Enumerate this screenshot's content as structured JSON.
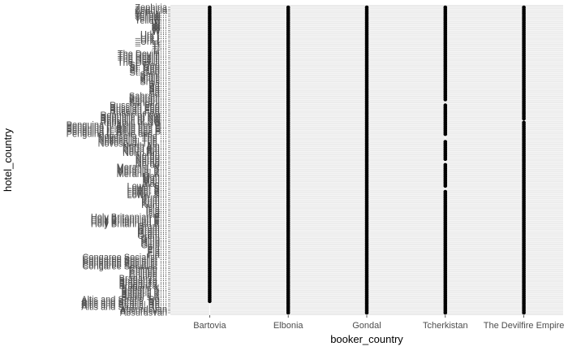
{
  "chart_data": {
    "type": "scatter",
    "title": "",
    "xlabel": "booker_country",
    "ylabel": "hotel_country",
    "grid": true,
    "x_categories": [
      "Bartovia",
      "Elbonia",
      "Gondal",
      "Tcherkistan",
      "The Devilfire Empire"
    ],
    "y_tick_labels_readable": [
      "Zephiria",
      "Yellow...",
      "W...",
      "_Urk (...",
      "Tr...",
      "The Devilfi...",
      "St. Geo...",
      "Shtis...",
      "Sa...",
      "Sahrani...",
      "Russian Fed...",
      "Republic of Nw...",
      "Penguina (L'Ã©le des P...",
      "Novosella, The ...",
      "North Am...",
      "Nerdo...",
      "Merania, K...",
      "Mari...",
      "Lower S...",
      "Kum...",
      "Isla...",
      "Holy Britannian E...",
      "Gram...",
      "Glub...",
      "Fla...",
      "Congaree Socialist ...",
      "Chinee ...",
      "Braganza ...",
      "Babar's K...",
      "Altis and Stratis, Re...",
      "Absurdsvan"
    ],
    "n_hotel_countries": 160,
    "series": [
      {
        "x": "Bartovia",
        "y_rows": [
          [
            0,
            153
          ]
        ]
      },
      {
        "x": "Elbonia",
        "y_rows": [
          [
            0,
            159
          ]
        ]
      },
      {
        "x": "Gondal",
        "y_rows": [
          [
            0,
            159
          ]
        ]
      },
      {
        "x": "Tcherkistan",
        "y_rows": [
          [
            0,
            48
          ],
          [
            51,
            66
          ],
          [
            70,
            79
          ],
          [
            82,
            93
          ],
          [
            96,
            159
          ]
        ]
      },
      {
        "x": "The Devilfire Empire",
        "y_rows": [
          [
            0,
            58
          ],
          [
            60,
            159
          ]
        ]
      }
    ],
    "colors": {
      "point": "#000000",
      "panel_bg": "#ebebeb",
      "grid": "#ffffff",
      "tick_text": "#4d4d4d",
      "axis_title": "#000000"
    }
  }
}
